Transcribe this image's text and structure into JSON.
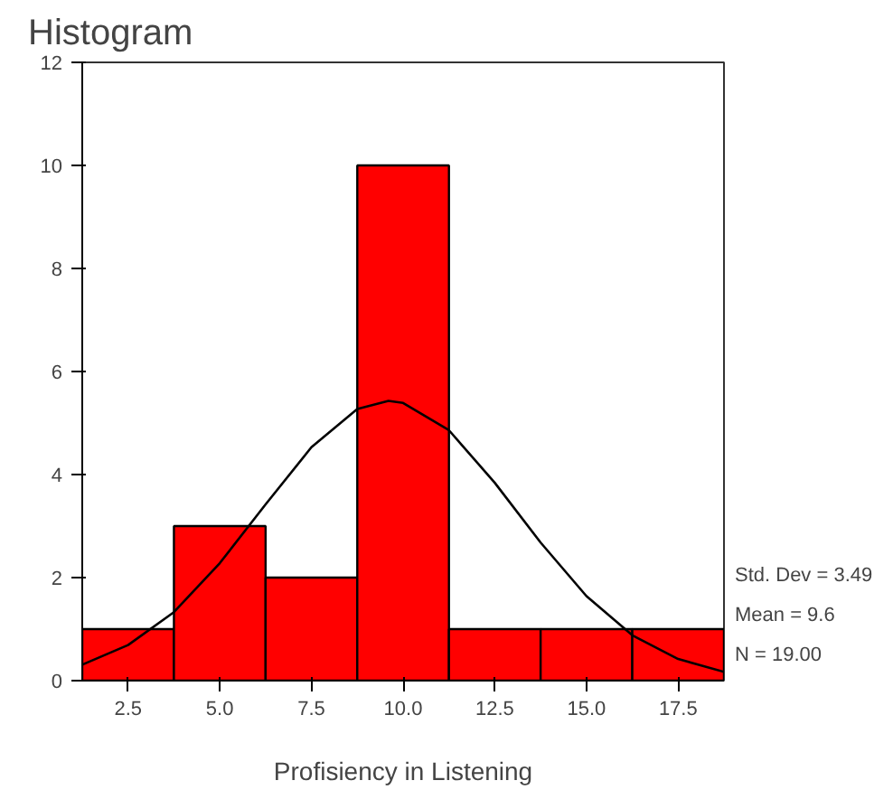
{
  "chart_data": {
    "type": "histogram",
    "title": "Histogram",
    "xlabel": "Profisiency in Listening",
    "bins": [
      1.25,
      3.75,
      6.25,
      8.75,
      11.25,
      13.75,
      16.25,
      18.75
    ],
    "values": [
      1,
      3,
      2,
      10,
      1,
      1,
      1
    ],
    "color": "#ff0000",
    "series": [
      {
        "type": "line",
        "color": "#000000",
        "x": [
          1.25,
          2.5,
          3.75,
          5,
          6.25,
          7.5,
          8.75,
          9.6,
          10,
          11.25,
          12.5,
          13.75,
          15,
          16.25,
          17.5,
          18.75
        ],
        "values": [
          0.31,
          0.69,
          1.33,
          2.28,
          3.42,
          4.53,
          5.27,
          5.43,
          5.39,
          4.86,
          3.84,
          2.68,
          1.64,
          0.88,
          0.42,
          0.17
        ]
      }
    ],
    "xlim": [
      1.25,
      18.75
    ],
    "ylim": [
      0,
      12
    ],
    "xticks": [
      2.5,
      {
        "value": 5,
        "label": "5.0"
      },
      7.5,
      {
        "value": 10,
        "label": "10.0"
      },
      12.5,
      {
        "value": 15,
        "label": "15.0"
      },
      17.5
    ],
    "yticks": [
      0,
      2,
      4,
      6,
      8,
      10,
      12
    ],
    "annotations": [
      "Std. Dev = 3.49",
      "Mean = 9.6",
      "N = 19.00"
    ],
    "grid": false
  }
}
